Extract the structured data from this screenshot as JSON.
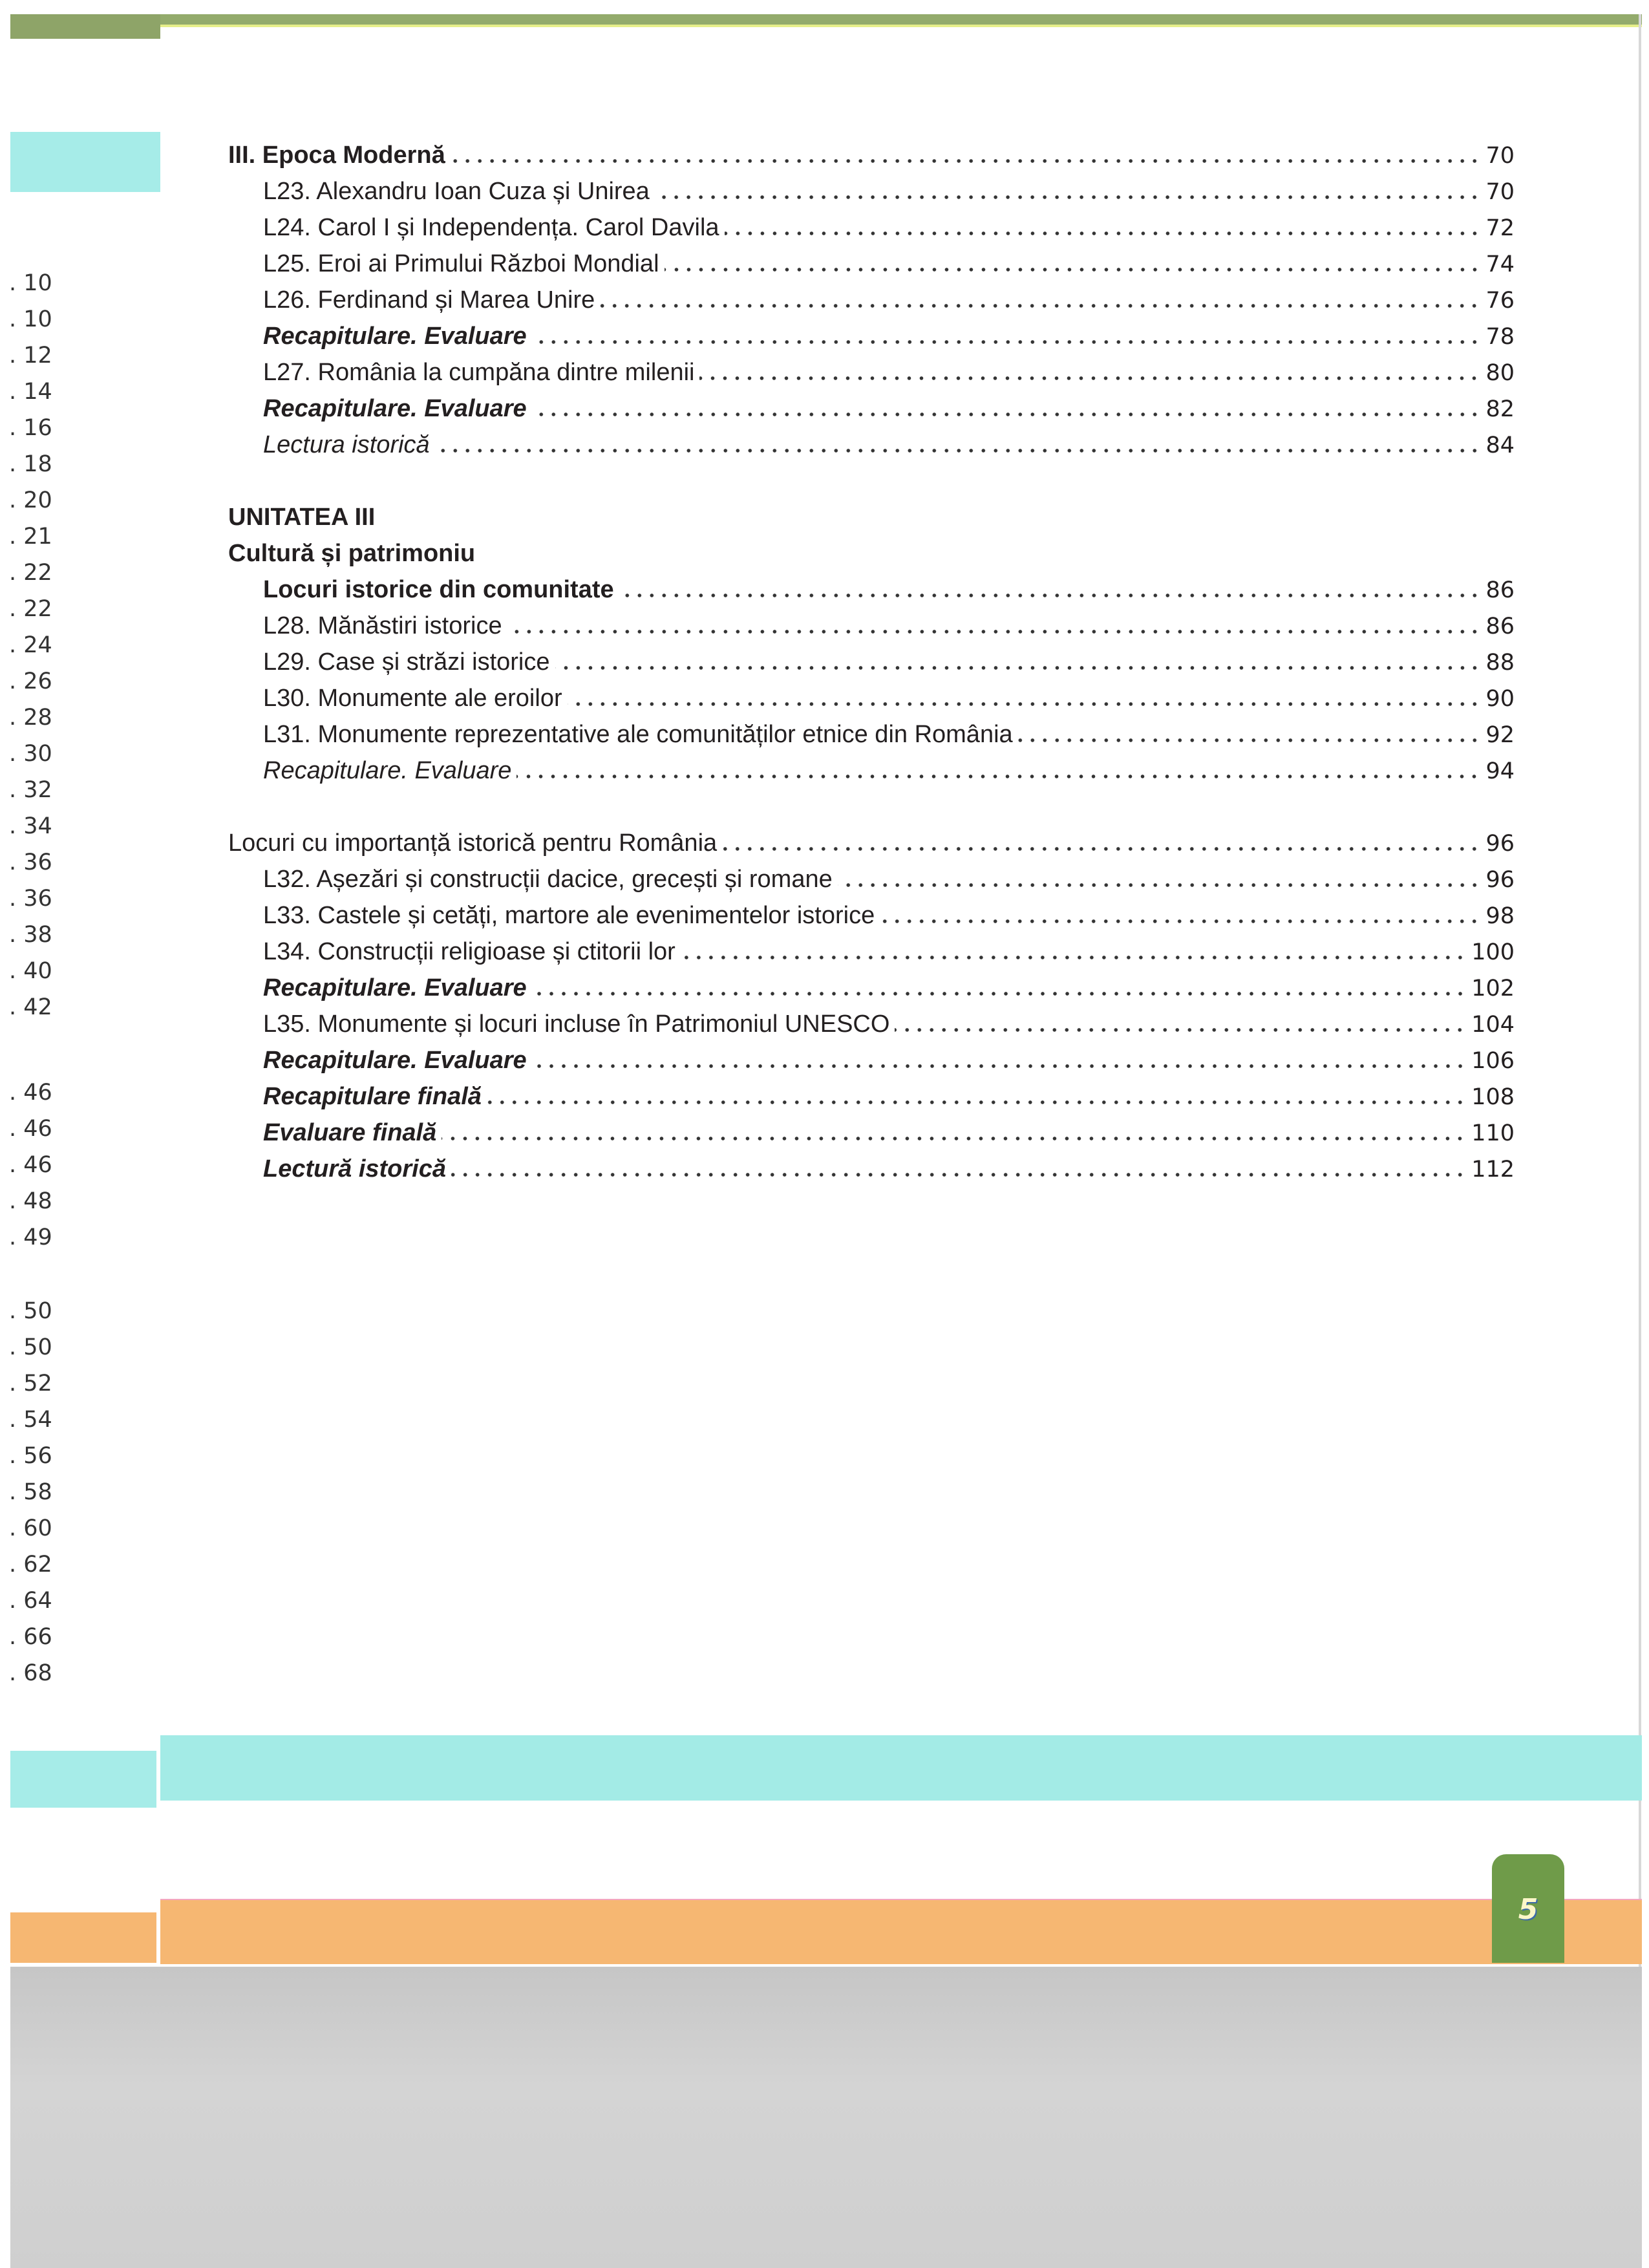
{
  "left_column_page_numbers": [
    [
      "10",
      "10",
      "12",
      "14",
      "16",
      "18",
      "20",
      "21",
      "22",
      "22",
      "24",
      "26",
      "28",
      "30",
      "32",
      "34",
      "36",
      "36",
      "38",
      "40",
      "42"
    ],
    [
      "46",
      "46",
      "46",
      "48",
      "49"
    ],
    [
      "50",
      "50",
      "52",
      "54",
      "56",
      "58",
      "60",
      "62",
      "64",
      "66",
      "68"
    ]
  ],
  "toc": {
    "section1": [
      {
        "title": "III. Epoca Modernă",
        "page": "70",
        "emphasis": "bold",
        "indent": false
      },
      {
        "title": "L23. Alexandru Ioan Cuza și Unirea",
        "page": "70",
        "emphasis": "normal",
        "indent": true
      },
      {
        "title": "L24. Carol I și Independența. Carol Davila",
        "page": "72",
        "emphasis": "normal",
        "indent": true
      },
      {
        "title": "L25. Eroi ai Primului Război Mondial",
        "page": "74",
        "emphasis": "normal",
        "indent": true
      },
      {
        "title": "L26. Ferdinand și Marea Unire",
        "page": "76",
        "emphasis": "normal",
        "indent": true
      },
      {
        "title": "Recapitulare. Evaluare",
        "page": "78",
        "emphasis": "bolditalic",
        "indent": true
      },
      {
        "title": "L27. România la cumpăna dintre milenii",
        "page": "80",
        "emphasis": "normal",
        "indent": true
      },
      {
        "title": "Recapitulare. Evaluare",
        "page": "82",
        "emphasis": "bolditalic",
        "indent": true
      },
      {
        "title": "Lectura istorică",
        "page": "84",
        "emphasis": "italic",
        "indent": true
      }
    ],
    "unit_label": "UNITATEA III",
    "unit_title": "Cultură și patrimoniu",
    "section2": [
      {
        "title": "Locuri istorice din comunitate",
        "page": "86",
        "emphasis": "bold",
        "indent": true
      },
      {
        "title": "L28. Mănăstiri istorice",
        "page": "86",
        "emphasis": "normal",
        "indent": true
      },
      {
        "title": "L29. Case și străzi istorice",
        "page": "88",
        "emphasis": "normal",
        "indent": true
      },
      {
        "title": "L30. Monumente ale eroilor",
        "page": "90",
        "emphasis": "normal",
        "indent": true
      },
      {
        "title": "L31. Monumente reprezentative ale comunităților etnice din România",
        "page": "92",
        "emphasis": "normal",
        "indent": true
      },
      {
        "title": "Recapitulare. Evaluare",
        "page": "94",
        "emphasis": "italic",
        "indent": true
      }
    ],
    "section3": [
      {
        "title": "Locuri cu importanță istorică pentru România",
        "page": "96",
        "emphasis": "normal",
        "indent": false
      },
      {
        "title": "L32. Așezări și construcții dacice, grecești și romane",
        "page": "96",
        "emphasis": "normal",
        "indent": true
      },
      {
        "title": "L33. Castele și cetăți, martore ale evenimentelor istorice",
        "page": "98",
        "emphasis": "normal",
        "indent": true
      },
      {
        "title": "L34. Construcții religioase și ctitorii lor",
        "page": "100",
        "emphasis": "normal",
        "indent": true
      },
      {
        "title": "Recapitulare. Evaluare",
        "page": "102",
        "emphasis": "bolditalic",
        "indent": true
      },
      {
        "title": "L35. Monumente și locuri incluse în Patrimoniul UNESCO",
        "page": "104",
        "emphasis": "normal",
        "indent": true
      },
      {
        "title": "Recapitulare. Evaluare",
        "page": "106",
        "emphasis": "bolditalic",
        "indent": true
      },
      {
        "title": "Recapitulare finală",
        "page": "108",
        "emphasis": "bolditalic",
        "indent": true
      },
      {
        "title": "Evaluare finală",
        "page": "110",
        "emphasis": "bolditalic",
        "indent": true
      },
      {
        "title": "Lectură istorică",
        "page": "112",
        "emphasis": "bolditalic",
        "indent": true
      }
    ]
  },
  "page_number": "5",
  "colors": {
    "top_bar": "#93ab6c",
    "teal": "#a3ebe6",
    "orange": "#f6b772",
    "page_tab": "#6f9b49",
    "scanner_bed": "#cfcfcf"
  }
}
